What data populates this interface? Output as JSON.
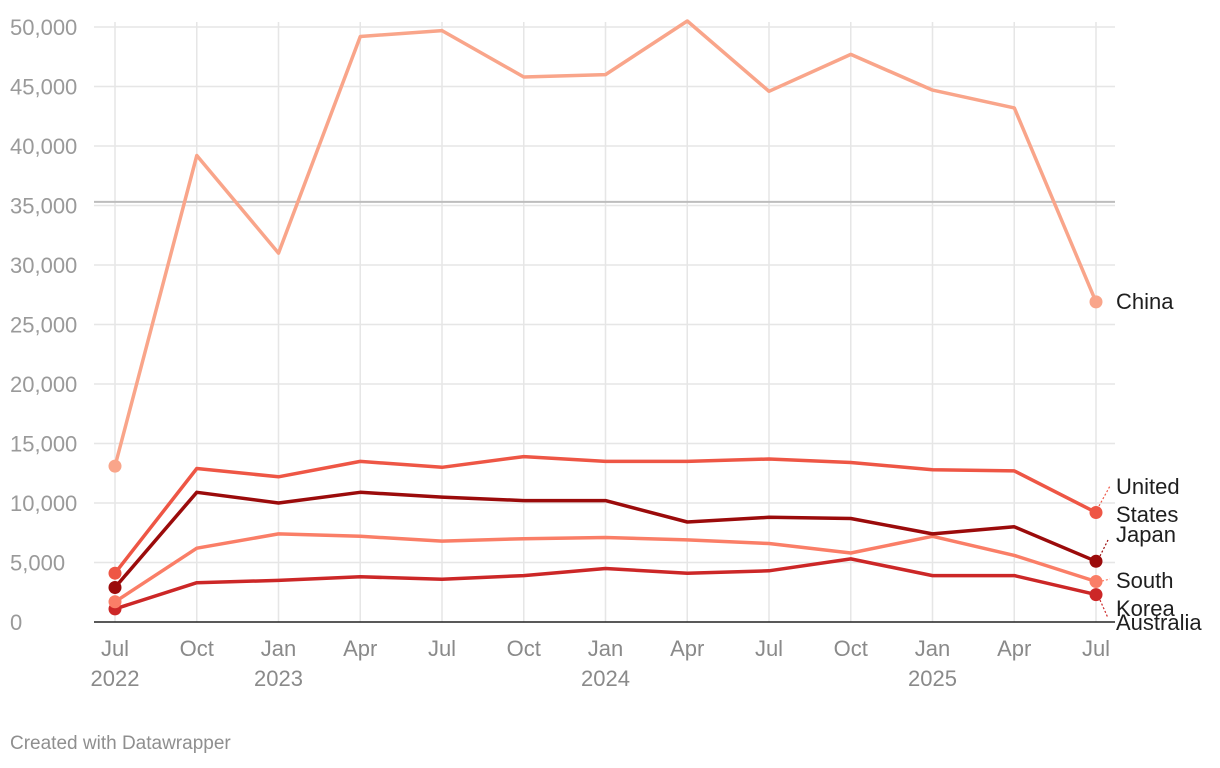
{
  "chart_data": {
    "type": "line",
    "title": "",
    "xlabel": "",
    "ylabel": "",
    "ylim": [
      0,
      50000
    ],
    "yticks": [
      0,
      5000,
      10000,
      15000,
      20000,
      25000,
      30000,
      35000,
      40000,
      45000,
      50000
    ],
    "ytick_labels": [
      "0",
      "5,000",
      "10,000",
      "15,000",
      "20,000",
      "25,000",
      "30,000",
      "35,000",
      "40,000",
      "45,000",
      "50,000"
    ],
    "reference_line": 35300,
    "grid": true,
    "x": [
      "2022-07",
      "2022-10",
      "2023-01",
      "2023-04",
      "2023-07",
      "2023-10",
      "2024-01",
      "2024-04",
      "2024-07",
      "2024-10",
      "2025-01",
      "2025-04",
      "2025-07"
    ],
    "xtick_labels": [
      {
        "month": "Jul",
        "year": "2022"
      },
      {
        "month": "Oct",
        "year": ""
      },
      {
        "month": "Jan",
        "year": "2023"
      },
      {
        "month": "Apr",
        "year": ""
      },
      {
        "month": "Jul",
        "year": ""
      },
      {
        "month": "Oct",
        "year": ""
      },
      {
        "month": "Jan",
        "year": "2024"
      },
      {
        "month": "Apr",
        "year": ""
      },
      {
        "month": "Jul",
        "year": ""
      },
      {
        "month": "Oct",
        "year": ""
      },
      {
        "month": "Jan",
        "year": "2025"
      },
      {
        "month": "Apr",
        "year": ""
      },
      {
        "month": "Jul",
        "year": ""
      }
    ],
    "series": [
      {
        "name": "China",
        "label_lines": [
          "China"
        ],
        "color": "#f9a58a",
        "values": [
          13100,
          39200,
          31000,
          49200,
          49700,
          45800,
          46000,
          50500,
          44600,
          47700,
          44700,
          43200,
          26900
        ]
      },
      {
        "name": "United States",
        "label_lines": [
          "United",
          "States"
        ],
        "color": "#ee5645",
        "values": [
          4100,
          12900,
          12200,
          13500,
          13000,
          13900,
          13500,
          13500,
          13700,
          13400,
          12800,
          12700,
          9200
        ]
      },
      {
        "name": "Japan",
        "label_lines": [
          "Japan"
        ],
        "color": "#9b0b0b",
        "values": [
          2900,
          10900,
          10000,
          10900,
          10500,
          10200,
          10200,
          8400,
          8800,
          8700,
          7400,
          8000,
          5100
        ]
      },
      {
        "name": "South Korea",
        "label_lines": [
          "South",
          "Korea"
        ],
        "color": "#fa7e67",
        "values": [
          1700,
          6200,
          7400,
          7200,
          6800,
          7000,
          7100,
          6900,
          6600,
          5800,
          7200,
          5600,
          3400
        ]
      },
      {
        "name": "Australia",
        "label_lines": [
          "Australia"
        ],
        "color": "#cc2727",
        "values": [
          1100,
          3300,
          3500,
          3800,
          3600,
          3900,
          4500,
          4100,
          4300,
          5300,
          3900,
          3900,
          2300
        ]
      }
    ]
  },
  "credit": "Created with Datawrapper"
}
